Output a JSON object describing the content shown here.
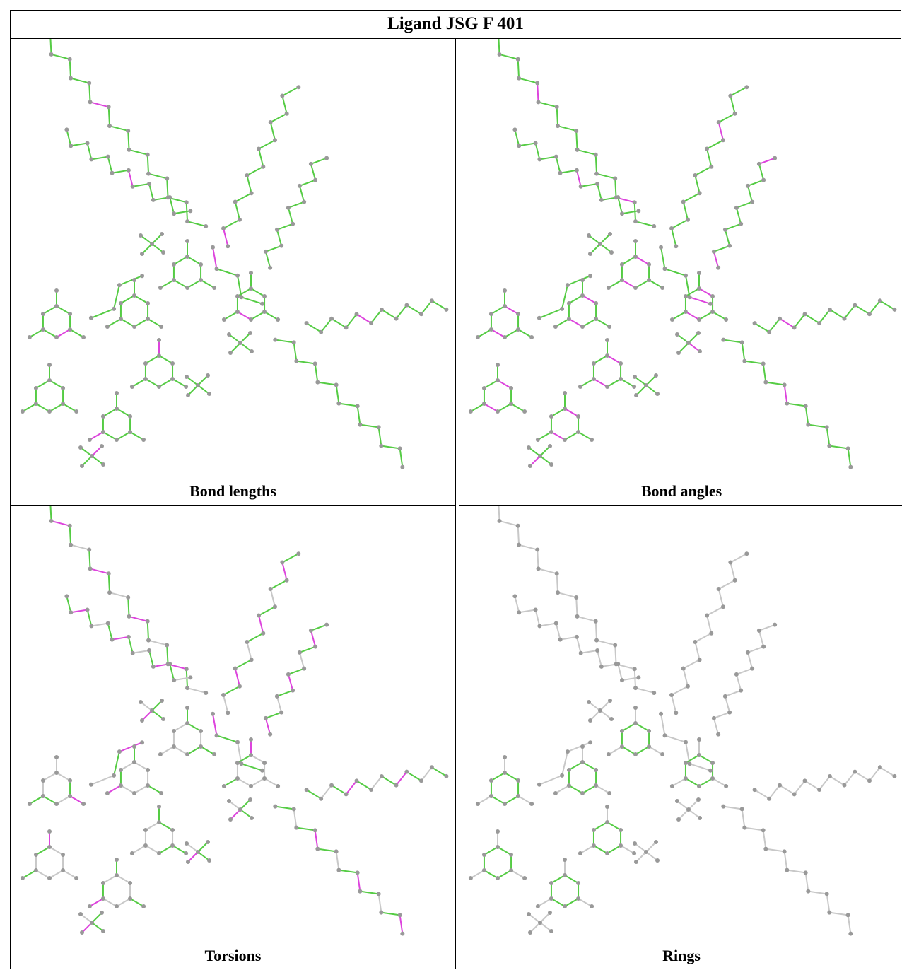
{
  "header": {
    "title": "Ligand JSG F 401"
  },
  "panels": [
    {
      "caption": "Bond lengths"
    },
    {
      "caption": "Bond angles"
    },
    {
      "caption": "Torsions"
    },
    {
      "caption": "Rings"
    }
  ]
}
